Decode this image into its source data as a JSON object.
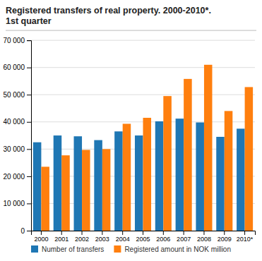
{
  "chart_data": {
    "type": "bar",
    "title": "Registered transfers of real property. 2000-2010*.",
    "subtitle": "1st quarter",
    "categories": [
      "2000",
      "2001",
      "2002",
      "2003",
      "2004",
      "2005",
      "2006",
      "2007",
      "2008",
      "2009",
      "2010*"
    ],
    "series": [
      {
        "name": "Number of transfers",
        "values": [
          32500,
          35000,
          34700,
          33300,
          36500,
          35000,
          40200,
          41200,
          39800,
          34500,
          37500
        ]
      },
      {
        "name": "Registered amount in NOK million",
        "values": [
          23500,
          27700,
          29700,
          30000,
          39300,
          41500,
          49500,
          55800,
          61000,
          44000,
          52800
        ]
      }
    ],
    "ylim": [
      0,
      70000
    ],
    "yticks": [
      0,
      {
        "value": 10000,
        "label": "10 000"
      },
      {
        "value": 20000,
        "label": "20 000"
      },
      {
        "value": 30000,
        "label": "30 000"
      },
      {
        "value": 40000,
        "label": "40 000"
      },
      {
        "value": 50000,
        "label": "50 000"
      },
      {
        "value": 60000,
        "label": "60 000"
      },
      {
        "value": 70000,
        "label": "70 000"
      }
    ],
    "grid": true,
    "legend": "bottom"
  }
}
